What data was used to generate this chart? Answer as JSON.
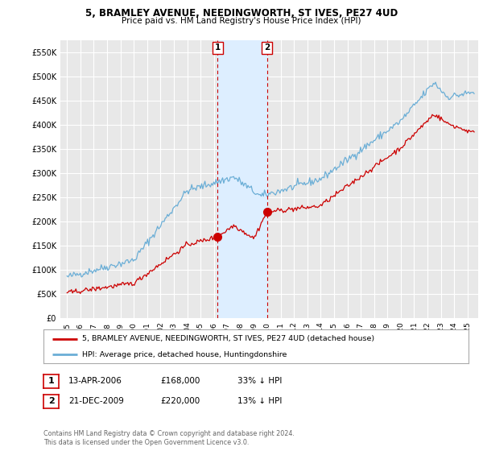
{
  "title": "5, BRAMLEY AVENUE, NEEDINGWORTH, ST IVES, PE27 4UD",
  "subtitle": "Price paid vs. HM Land Registry's House Price Index (HPI)",
  "ylim": [
    0,
    575000
  ],
  "yticks": [
    0,
    50000,
    100000,
    150000,
    200000,
    250000,
    300000,
    350000,
    400000,
    450000,
    500000,
    550000
  ],
  "ytick_labels": [
    "£0",
    "£50K",
    "£100K",
    "£150K",
    "£200K",
    "£250K",
    "£300K",
    "£350K",
    "£400K",
    "£450K",
    "£500K",
    "£550K"
  ],
  "background_color": "#ffffff",
  "plot_bg_color": "#e8e8e8",
  "grid_color": "#ffffff",
  "sale1_date": 2006.28,
  "sale1_price": 168000,
  "sale2_date": 2009.97,
  "sale2_price": 220000,
  "sale1_date_str": "13-APR-2006",
  "sale1_price_str": "£168,000",
  "sale1_hpi_str": "33% ↓ HPI",
  "sale2_date_str": "21-DEC-2009",
  "sale2_price_str": "£220,000",
  "sale2_hpi_str": "13% ↓ HPI",
  "hpi_line_color": "#6baed6",
  "price_line_color": "#cc0000",
  "shade_color": "#ddeeff",
  "vline_color": "#cc0000",
  "legend_label_price": "5, BRAMLEY AVENUE, NEEDINGWORTH, ST IVES, PE27 4UD (detached house)",
  "legend_label_hpi": "HPI: Average price, detached house, Huntingdonshire",
  "footer": "Contains HM Land Registry data © Crown copyright and database right 2024.\nThis data is licensed under the Open Government Licence v3.0."
}
